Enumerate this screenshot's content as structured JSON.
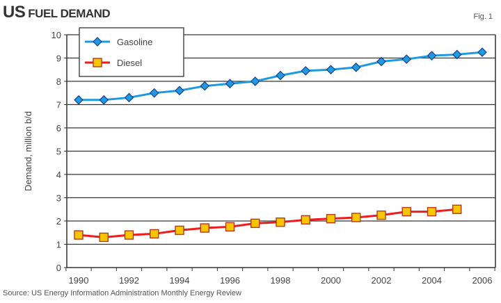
{
  "chart_data": {
    "type": "line",
    "title_prefix": "US",
    "title_main": "FUEL DEMAND",
    "fig_label": "Fig. 1",
    "xlabel": "",
    "ylabel": "Demand, million b/d",
    "ylim": [
      0,
      10
    ],
    "xlim": [
      1990,
      2006
    ],
    "y_ticks": [
      "0",
      "1",
      "2",
      "3",
      "4",
      "5",
      "6",
      "7",
      "8",
      "9",
      "10"
    ],
    "x_ticks": [
      "1990",
      "1992",
      "1994",
      "1996",
      "1998",
      "2000",
      "2002",
      "2004",
      "2006"
    ],
    "grid": true,
    "legend_position": "top-left",
    "series": [
      {
        "name": "Gasoline",
        "color": "#1e9be0",
        "marker": "diamond",
        "x": [
          1990,
          1991,
          1992,
          1993,
          1994,
          1995,
          1996,
          1997,
          1998,
          1999,
          2000,
          2001,
          2002,
          2003,
          2004,
          2005,
          2006
        ],
        "values": [
          7.2,
          7.2,
          7.3,
          7.5,
          7.6,
          7.8,
          7.9,
          8.0,
          8.25,
          8.45,
          8.5,
          8.6,
          8.85,
          8.95,
          9.1,
          9.15,
          9.25
        ]
      },
      {
        "name": "Diesel",
        "color": "#ee1c1c",
        "marker": "square",
        "x": [
          1990,
          1991,
          1992,
          1993,
          1994,
          1995,
          1996,
          1997,
          1998,
          1999,
          2000,
          2001,
          2002,
          2003,
          2004,
          2005
        ],
        "values": [
          1.4,
          1.3,
          1.4,
          1.45,
          1.6,
          1.7,
          1.75,
          1.9,
          1.95,
          2.05,
          2.1,
          2.15,
          2.25,
          2.4,
          2.4,
          2.5
        ]
      }
    ],
    "source": "Source: US Energy Information Administration Monthly Energy Review"
  }
}
